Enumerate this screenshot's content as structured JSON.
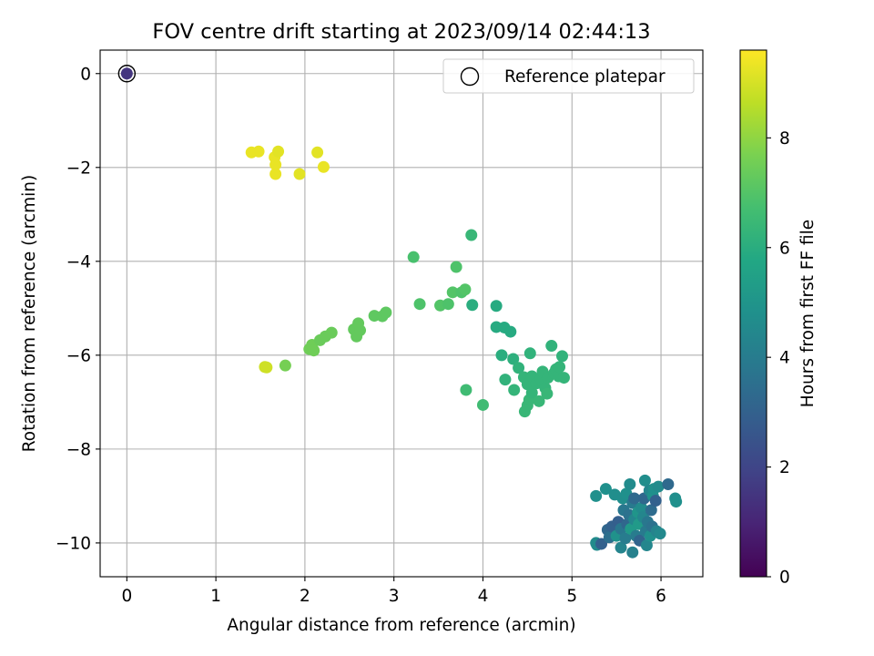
{
  "chart_data": {
    "type": "scatter",
    "title": "FOV centre drift starting at 2023/09/14 02:44:13",
    "xlabel": "Angular distance from reference (arcmin)",
    "ylabel": "Rotation from reference (arcmin)",
    "xlim": [
      -0.3,
      6.47
    ],
    "ylim": [
      -10.72,
      0.5
    ],
    "xticks": [
      0,
      1,
      2,
      3,
      4,
      5,
      6
    ],
    "yticks": [
      0,
      -2,
      -4,
      -6,
      -8,
      -10
    ],
    "xtick_labels": [
      "0",
      "1",
      "2",
      "3",
      "4",
      "5",
      "6"
    ],
    "ytick_labels": [
      "0",
      "−2",
      "−4",
      "−6",
      "−8",
      "−10"
    ],
    "grid": true,
    "colormap": "viridis",
    "colorbar": {
      "label": "Hours from first FF file",
      "range": [
        0,
        9.6
      ],
      "ticks": [
        0,
        2,
        4,
        6,
        8
      ],
      "tick_labels": [
        "0",
        "2",
        "4",
        "6",
        "8"
      ]
    },
    "legend": {
      "position": "top-right",
      "entries": [
        "Reference platepar"
      ]
    },
    "reference_point": {
      "x": 0,
      "y": 0,
      "c": 1.5
    },
    "points": [
      {
        "x": 1.4,
        "y": -1.68,
        "c": 9.3
      },
      {
        "x": 1.48,
        "y": -1.66,
        "c": 9.3
      },
      {
        "x": 1.66,
        "y": -1.78,
        "c": 9.3
      },
      {
        "x": 1.7,
        "y": -1.66,
        "c": 9.2
      },
      {
        "x": 1.67,
        "y": -1.94,
        "c": 9.3
      },
      {
        "x": 1.67,
        "y": -2.14,
        "c": 9.3
      },
      {
        "x": 1.94,
        "y": -2.14,
        "c": 9.2
      },
      {
        "x": 2.14,
        "y": -1.68,
        "c": 9.2
      },
      {
        "x": 2.21,
        "y": -1.99,
        "c": 9.3
      },
      {
        "x": 1.55,
        "y": -6.25,
        "c": 8.9
      },
      {
        "x": 1.57,
        "y": -6.26,
        "c": 8.9
      },
      {
        "x": 1.78,
        "y": -6.22,
        "c": 7.6
      },
      {
        "x": 2.05,
        "y": -5.87,
        "c": 7.5
      },
      {
        "x": 2.08,
        "y": -5.78,
        "c": 7.5
      },
      {
        "x": 2.1,
        "y": -5.9,
        "c": 7.5
      },
      {
        "x": 2.17,
        "y": -5.68,
        "c": 7.4
      },
      {
        "x": 2.23,
        "y": -5.6,
        "c": 7.4
      },
      {
        "x": 2.3,
        "y": -5.52,
        "c": 7.4
      },
      {
        "x": 2.55,
        "y": -5.45,
        "c": 7.3
      },
      {
        "x": 2.58,
        "y": -5.6,
        "c": 7.3
      },
      {
        "x": 2.6,
        "y": -5.32,
        "c": 7.3
      },
      {
        "x": 2.62,
        "y": -5.47,
        "c": 7.3
      },
      {
        "x": 2.78,
        "y": -5.16,
        "c": 7.2
      },
      {
        "x": 2.87,
        "y": -5.17,
        "c": 7.2
      },
      {
        "x": 2.91,
        "y": -5.09,
        "c": 7.2
      },
      {
        "x": 3.22,
        "y": -3.91,
        "c": 6.8
      },
      {
        "x": 3.29,
        "y": -4.91,
        "c": 6.9
      },
      {
        "x": 3.52,
        "y": -4.94,
        "c": 7.0
      },
      {
        "x": 3.61,
        "y": -4.91,
        "c": 6.9
      },
      {
        "x": 3.66,
        "y": -4.66,
        "c": 7.0
      },
      {
        "x": 3.7,
        "y": -4.12,
        "c": 6.9
      },
      {
        "x": 3.76,
        "y": -4.66,
        "c": 6.9
      },
      {
        "x": 3.8,
        "y": -4.6,
        "c": 7.0
      },
      {
        "x": 3.87,
        "y": -3.44,
        "c": 6.4
      },
      {
        "x": 3.88,
        "y": -4.93,
        "c": 6.0
      },
      {
        "x": 3.81,
        "y": -6.74,
        "c": 6.6
      },
      {
        "x": 4.0,
        "y": -7.06,
        "c": 6.6
      },
      {
        "x": 4.15,
        "y": -4.95,
        "c": 5.9
      },
      {
        "x": 4.15,
        "y": -5.4,
        "c": 5.9
      },
      {
        "x": 4.24,
        "y": -5.41,
        "c": 5.9
      },
      {
        "x": 4.21,
        "y": -6.0,
        "c": 6.0
      },
      {
        "x": 4.25,
        "y": -6.52,
        "c": 6.2
      },
      {
        "x": 4.31,
        "y": -5.5,
        "c": 5.9
      },
      {
        "x": 4.34,
        "y": -6.08,
        "c": 6.1
      },
      {
        "x": 4.35,
        "y": -6.74,
        "c": 6.3
      },
      {
        "x": 4.4,
        "y": -6.27,
        "c": 6.2
      },
      {
        "x": 4.47,
        "y": -7.2,
        "c": 6.4
      },
      {
        "x": 4.5,
        "y": -7.07,
        "c": 6.4
      },
      {
        "x": 4.52,
        "y": -6.95,
        "c": 6.4
      },
      {
        "x": 4.46,
        "y": -6.47,
        "c": 6.3
      },
      {
        "x": 4.5,
        "y": -6.62,
        "c": 6.3
      },
      {
        "x": 4.55,
        "y": -6.45,
        "c": 6.3
      },
      {
        "x": 4.53,
        "y": -5.96,
        "c": 6.2
      },
      {
        "x": 4.55,
        "y": -6.8,
        "c": 6.3
      },
      {
        "x": 4.6,
        "y": -6.6,
        "c": 6.3
      },
      {
        "x": 4.63,
        "y": -6.98,
        "c": 6.4
      },
      {
        "x": 4.65,
        "y": -6.5,
        "c": 6.3
      },
      {
        "x": 4.67,
        "y": -6.35,
        "c": 6.3
      },
      {
        "x": 4.7,
        "y": -6.7,
        "c": 6.3
      },
      {
        "x": 4.72,
        "y": -6.82,
        "c": 6.4
      },
      {
        "x": 4.73,
        "y": -6.48,
        "c": 6.3
      },
      {
        "x": 4.77,
        "y": -5.8,
        "c": 6.2
      },
      {
        "x": 4.8,
        "y": -6.38,
        "c": 6.3
      },
      {
        "x": 4.82,
        "y": -6.3,
        "c": 6.3
      },
      {
        "x": 4.85,
        "y": -6.45,
        "c": 6.3
      },
      {
        "x": 4.86,
        "y": -6.25,
        "c": 6.3
      },
      {
        "x": 4.89,
        "y": -6.02,
        "c": 6.2
      },
      {
        "x": 4.91,
        "y": -6.48,
        "c": 6.3
      },
      {
        "x": 5.27,
        "y": -9.0,
        "c": 4.8
      },
      {
        "x": 5.27,
        "y": -10.0,
        "c": 4.6
      },
      {
        "x": 5.28,
        "y": -10.04,
        "c": 4.6
      },
      {
        "x": 5.33,
        "y": -10.02,
        "c": 3.0
      },
      {
        "x": 5.38,
        "y": -8.85,
        "c": 4.8
      },
      {
        "x": 5.4,
        "y": -9.72,
        "c": 3.2
      },
      {
        "x": 5.42,
        "y": -9.88,
        "c": 3.5
      },
      {
        "x": 5.45,
        "y": -9.65,
        "c": 3.0
      },
      {
        "x": 5.48,
        "y": -8.97,
        "c": 4.7
      },
      {
        "x": 5.5,
        "y": -9.85,
        "c": 4.9
      },
      {
        "x": 5.52,
        "y": -9.55,
        "c": 2.9
      },
      {
        "x": 5.55,
        "y": -9.7,
        "c": 3.8
      },
      {
        "x": 5.55,
        "y": -10.1,
        "c": 4.3
      },
      {
        "x": 5.57,
        "y": -9.05,
        "c": 4.7
      },
      {
        "x": 5.58,
        "y": -9.3,
        "c": 3.8
      },
      {
        "x": 5.6,
        "y": -9.9,
        "c": 4.0
      },
      {
        "x": 5.61,
        "y": -8.95,
        "c": 4.8
      },
      {
        "x": 5.62,
        "y": -9.6,
        "c": 3.2
      },
      {
        "x": 5.64,
        "y": -9.4,
        "c": 3.6
      },
      {
        "x": 5.65,
        "y": -8.75,
        "c": 4.6
      },
      {
        "x": 5.66,
        "y": -9.7,
        "c": 5.2
      },
      {
        "x": 5.68,
        "y": -10.2,
        "c": 4.2
      },
      {
        "x": 5.68,
        "y": -9.15,
        "c": 3.9
      },
      {
        "x": 5.7,
        "y": -9.5,
        "c": 4.4
      },
      {
        "x": 5.7,
        "y": -9.05,
        "c": 3.3
      },
      {
        "x": 5.72,
        "y": -9.85,
        "c": 4.0
      },
      {
        "x": 5.74,
        "y": -9.35,
        "c": 5.0
      },
      {
        "x": 5.75,
        "y": -9.6,
        "c": 5.2
      },
      {
        "x": 5.76,
        "y": -9.95,
        "c": 3.1
      },
      {
        "x": 5.78,
        "y": -9.25,
        "c": 4.6
      },
      {
        "x": 5.8,
        "y": -9.45,
        "c": 4.4
      },
      {
        "x": 5.81,
        "y": -9.05,
        "c": 3.2
      },
      {
        "x": 5.82,
        "y": -8.67,
        "c": 4.7
      },
      {
        "x": 5.83,
        "y": -9.75,
        "c": 3.9
      },
      {
        "x": 5.84,
        "y": -10.05,
        "c": 4.4
      },
      {
        "x": 5.85,
        "y": -9.55,
        "c": 3.8
      },
      {
        "x": 5.87,
        "y": -8.88,
        "c": 4.4
      },
      {
        "x": 5.88,
        "y": -9.85,
        "c": 4.8
      },
      {
        "x": 5.89,
        "y": -9.3,
        "c": 3.4
      },
      {
        "x": 5.9,
        "y": -9.65,
        "c": 3.6
      },
      {
        "x": 5.91,
        "y": -9.0,
        "c": 4.9
      },
      {
        "x": 5.92,
        "y": -8.85,
        "c": 4.8
      },
      {
        "x": 5.94,
        "y": -9.1,
        "c": 3.0
      },
      {
        "x": 5.95,
        "y": -9.75,
        "c": 4.3
      },
      {
        "x": 5.97,
        "y": -8.8,
        "c": 4.6
      },
      {
        "x": 5.99,
        "y": -9.8,
        "c": 4.5
      },
      {
        "x": 6.08,
        "y": -8.75,
        "c": 3.3
      },
      {
        "x": 6.16,
        "y": -9.05,
        "c": 4.7
      },
      {
        "x": 6.17,
        "y": -9.12,
        "c": 4.8
      }
    ]
  }
}
